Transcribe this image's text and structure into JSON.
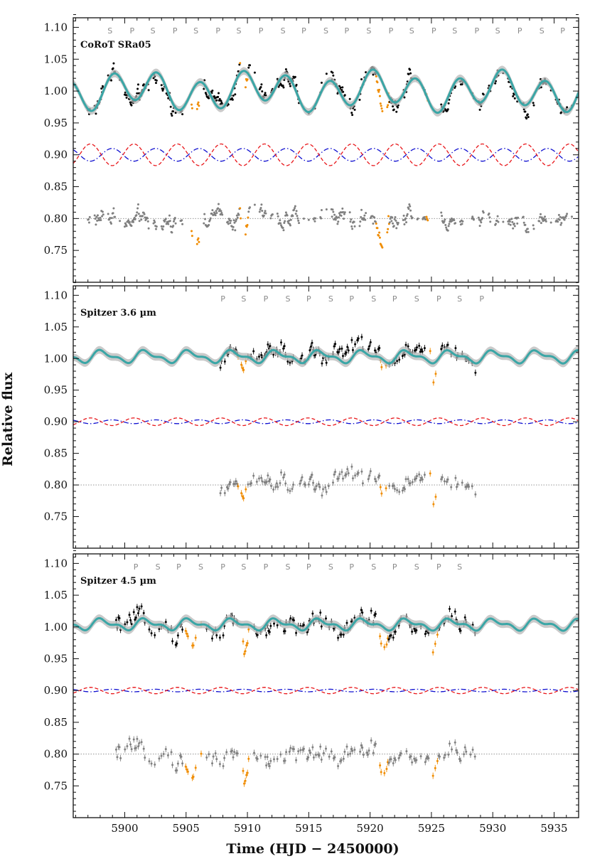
{
  "figure": {
    "ylabel": "Relative flux",
    "xlabel": "Time (HJD − 2450000)",
    "colors": {
      "model": "#3aa6a6",
      "model_band": "#b8b8b8",
      "data": "#000000",
      "eclipse_data": "#f08c00",
      "residuals": "#808080",
      "component_dashed": "#e8161a",
      "component_dashdot": "#1010d0",
      "reference_line": "#888888"
    }
  },
  "chart_data": [
    {
      "type": "scatter",
      "title": "CoRoT SRa05",
      "x_range": [
        5895.8,
        5937
      ],
      "ylim": [
        0.7,
        1.115
      ],
      "xticks": [
        5900,
        5905,
        5910,
        5915,
        5920,
        5925,
        5930,
        5935
      ],
      "xtick_labels": [
        "5900",
        "5905",
        "5910",
        "5915",
        "5920",
        "5925",
        "5930",
        "5935"
      ],
      "yticks": [
        0.75,
        0.8,
        0.85,
        0.9,
        0.95,
        1.0,
        1.05,
        1.1
      ],
      "ytick_labels": [
        "0.75",
        "0.80",
        "0.85",
        "0.90",
        "0.95",
        "1.00",
        "1.05",
        "1.10"
      ],
      "eclipse_labels": [
        {
          "t": 5898.8,
          "label": "S"
        },
        {
          "t": 5900.6,
          "label": "P"
        },
        {
          "t": 5902.3,
          "label": "S"
        },
        {
          "t": 5904.1,
          "label": "P"
        },
        {
          "t": 5905.8,
          "label": "S"
        },
        {
          "t": 5907.6,
          "label": "P"
        },
        {
          "t": 5909.3,
          "label": "S"
        },
        {
          "t": 5911.1,
          "label": "P"
        },
        {
          "t": 5912.9,
          "label": "S"
        },
        {
          "t": 5914.6,
          "label": "P"
        },
        {
          "t": 5916.4,
          "label": "S"
        },
        {
          "t": 5918.1,
          "label": "P"
        },
        {
          "t": 5919.9,
          "label": "S"
        },
        {
          "t": 5921.7,
          "label": "P"
        },
        {
          "t": 5923.4,
          "label": "S"
        },
        {
          "t": 5925.2,
          "label": "P"
        },
        {
          "t": 5926.9,
          "label": "S"
        },
        {
          "t": 5928.7,
          "label": "P"
        },
        {
          "t": 5930.4,
          "label": "S"
        },
        {
          "t": 5932.2,
          "label": "P"
        },
        {
          "t": 5934.0,
          "label": "S"
        },
        {
          "t": 5935.7,
          "label": "P"
        }
      ],
      "data_range": [
        5897.0,
        5936.5
      ],
      "data_cadence": 0.05,
      "model_params": {
        "base": 1.0,
        "amp1": 0.024,
        "period1": 3.52,
        "phase1": 5899.1,
        "amp2": 0.01,
        "period2": 9.8,
        "phase2": 5901.0
      },
      "component_params": {
        "center": 0.9,
        "amp_dashed": 0.017,
        "amp_dashdot": 0.01,
        "period": 3.55,
        "phase": 5897.2
      },
      "residual_offset": 0.8,
      "eclipse_windows": [
        [
          5905.2,
          5906.3
        ],
        [
          5909.4,
          5910.1
        ],
        [
          5920.5,
          5921.6
        ],
        [
          5924.6,
          5925.5
        ]
      ],
      "eclipse_depth": 0.045,
      "noise": 0.016,
      "error_bars": false
    },
    {
      "type": "scatter",
      "title": "Spitzer 3.6 µm",
      "x_range": [
        5895.8,
        5937
      ],
      "ylim": [
        0.7,
        1.115
      ],
      "xticks": [
        5900,
        5905,
        5910,
        5915,
        5920,
        5925,
        5930,
        5935
      ],
      "xtick_labels": [
        "5900",
        "5905",
        "5910",
        "5915",
        "5920",
        "5925",
        "5930",
        "5935"
      ],
      "yticks": [
        0.75,
        0.8,
        0.85,
        0.9,
        0.95,
        1.0,
        1.05,
        1.1
      ],
      "ytick_labels": [
        "0.75",
        "0.80",
        "0.85",
        "0.90",
        "0.95",
        "1.00",
        "1.05",
        "1.10"
      ],
      "eclipse_labels": [
        {
          "t": 5908.0,
          "label": "P"
        },
        {
          "t": 5909.7,
          "label": "S"
        },
        {
          "t": 5911.5,
          "label": "P"
        },
        {
          "t": 5913.3,
          "label": "S"
        },
        {
          "t": 5915.0,
          "label": "P"
        },
        {
          "t": 5916.8,
          "label": "S"
        },
        {
          "t": 5918.5,
          "label": "P"
        },
        {
          "t": 5920.3,
          "label": "S"
        },
        {
          "t": 5922.0,
          "label": "P"
        },
        {
          "t": 5923.8,
          "label": "S"
        },
        {
          "t": 5925.6,
          "label": "P"
        },
        {
          "t": 5927.3,
          "label": "S"
        },
        {
          "t": 5929.1,
          "label": "P"
        }
      ],
      "data_range": [
        5907.8,
        5928.6
      ],
      "data_cadence": 0.09,
      "model_params": {
        "base": 1.003,
        "amp1": 0.008,
        "period1": 3.55,
        "phase1": 5898.2,
        "amp2": 0.004,
        "period2": 1.77,
        "phase2": 5897.8
      },
      "component_params": {
        "center": 0.9,
        "amp_dashed": 0.006,
        "amp_dashdot": 0.003,
        "period": 3.55,
        "phase": 5897.2
      },
      "residual_offset": 0.8,
      "eclipse_windows": [
        [
          5909.2,
          5910.0
        ],
        [
          5920.8,
          5921.4
        ],
        [
          5924.9,
          5925.5
        ]
      ],
      "eclipse_depth": 0.04,
      "noise": 0.02,
      "error_bars": true
    },
    {
      "type": "scatter",
      "title": "Spitzer 4.5 µm",
      "x_range": [
        5895.8,
        5937
      ],
      "ylim": [
        0.7,
        1.115
      ],
      "xticks": [
        5900,
        5905,
        5910,
        5915,
        5920,
        5925,
        5930,
        5935
      ],
      "xtick_labels": [
        "5900",
        "5905",
        "5910",
        "5915",
        "5920",
        "5925",
        "5930",
        "5935"
      ],
      "yticks": [
        0.75,
        0.8,
        0.85,
        0.9,
        0.95,
        1.0,
        1.05,
        1.1
      ],
      "ytick_labels": [
        "0.75",
        "0.80",
        "0.85",
        "0.90",
        "0.95",
        "1.00",
        "1.05",
        "1.10"
      ],
      "eclipse_labels": [
        {
          "t": 5900.9,
          "label": "P"
        },
        {
          "t": 5902.7,
          "label": "S"
        },
        {
          "t": 5904.4,
          "label": "P"
        },
        {
          "t": 5906.2,
          "label": "S"
        },
        {
          "t": 5908.0,
          "label": "P"
        },
        {
          "t": 5909.7,
          "label": "S"
        },
        {
          "t": 5911.5,
          "label": "P"
        },
        {
          "t": 5913.3,
          "label": "S"
        },
        {
          "t": 5915.0,
          "label": "P"
        },
        {
          "t": 5916.8,
          "label": "S"
        },
        {
          "t": 5918.5,
          "label": "P"
        },
        {
          "t": 5920.3,
          "label": "S"
        },
        {
          "t": 5922.0,
          "label": "P"
        },
        {
          "t": 5923.8,
          "label": "S"
        },
        {
          "t": 5925.6,
          "label": "P"
        },
        {
          "t": 5927.3,
          "label": "S"
        }
      ],
      "data_range": [
        5899.3,
        5928.6
      ],
      "data_cadence": 0.09,
      "model_params": {
        "base": 1.004,
        "amp1": 0.007,
        "period1": 3.55,
        "phase1": 5898.2,
        "amp2": 0.004,
        "period2": 1.77,
        "phase2": 5897.8
      },
      "component_params": {
        "center": 0.9,
        "amp_dashed": 0.005,
        "amp_dashdot": 0.002,
        "period": 3.55,
        "phase": 5897.2
      },
      "residual_offset": 0.8,
      "eclipse_windows": [
        [
          5904.8,
          5906.4
        ],
        [
          5909.3,
          5910.2
        ],
        [
          5920.5,
          5921.5
        ],
        [
          5924.8,
          5925.5
        ]
      ],
      "eclipse_depth": 0.04,
      "noise": 0.022,
      "error_bars": true
    }
  ]
}
